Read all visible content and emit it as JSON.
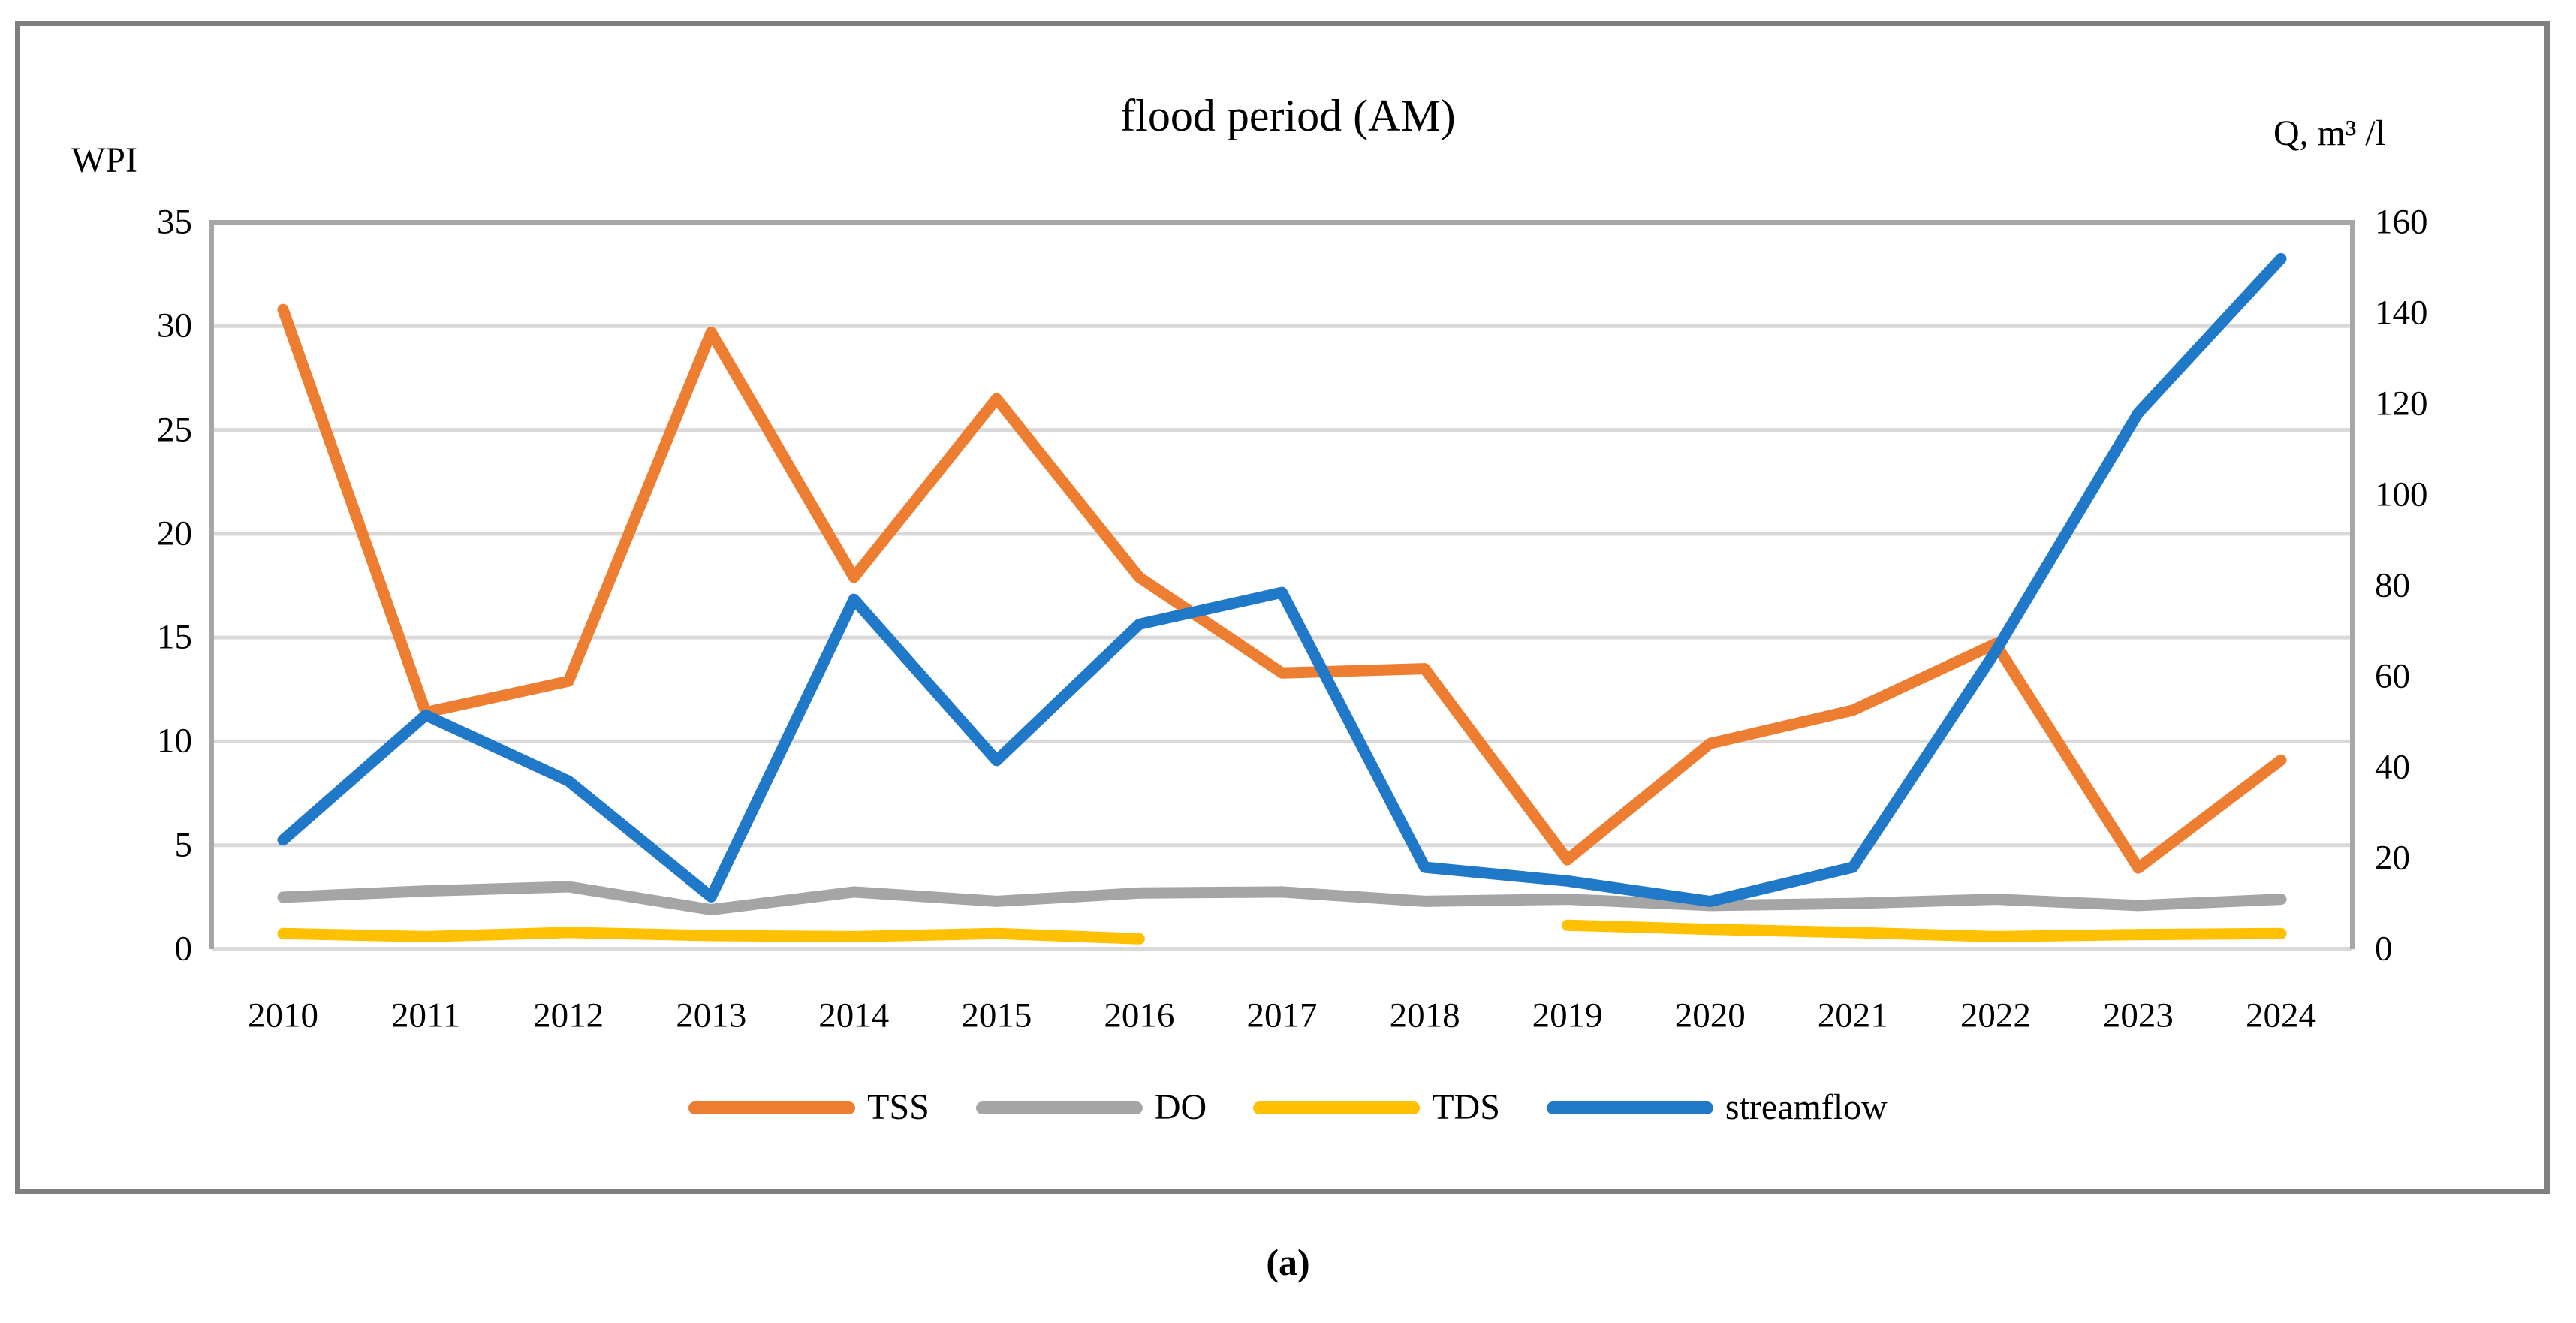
{
  "figure": {
    "title": "flood period (AM)",
    "caption": "(a)",
    "left_axis": {
      "label": "WPI",
      "ticks": [
        35,
        30,
        25,
        20,
        15,
        10,
        5,
        0
      ]
    },
    "right_axis": {
      "label": "Q, m³ /l",
      "ticks": [
        160,
        140,
        120,
        100,
        80,
        60,
        40,
        20,
        0
      ]
    }
  },
  "legend": {
    "items": [
      {
        "label": "TSS",
        "color": "#ED7D31"
      },
      {
        "label": "DO",
        "color": "#A5A5A5"
      },
      {
        "label": "TDS",
        "color": "#FFC000"
      },
      {
        "label": "streamflow",
        "color": "#1F78C8"
      }
    ]
  },
  "chart_data": {
    "type": "line",
    "title": "flood period (AM)",
    "categories": [
      2010,
      2011,
      2012,
      2013,
      2014,
      2015,
      2016,
      2017,
      2018,
      2019,
      2020,
      2021,
      2022,
      2023,
      2024
    ],
    "series": [
      {
        "name": "TSS",
        "axis": "left",
        "color": "#ED7D31",
        "values": [
          30.8,
          11.4,
          12.9,
          29.7,
          17.9,
          26.5,
          17.9,
          13.3,
          13.5,
          4.3,
          9.9,
          11.5,
          14.7,
          3.9,
          9.1
        ]
      },
      {
        "name": "DO",
        "axis": "left",
        "color": "#A5A5A5",
        "values": [
          2.5,
          2.8,
          3.0,
          1.9,
          2.75,
          2.3,
          2.7,
          2.75,
          2.3,
          2.4,
          2.1,
          2.2,
          2.4,
          2.1,
          2.4
        ]
      },
      {
        "name": "TDS",
        "axis": "left",
        "color": "#FFC000",
        "values": [
          0.75,
          0.6,
          0.8,
          0.65,
          0.6,
          0.75,
          0.5,
          null,
          null,
          1.15,
          0.95,
          0.8,
          0.6,
          0.7,
          0.75
        ]
      },
      {
        "name": "streamflow",
        "axis": "right",
        "color": "#1F78C8",
        "values": [
          24,
          51.5,
          37,
          11.5,
          77,
          41.5,
          71.5,
          78.5,
          18,
          15,
          10.5,
          18,
          65.5,
          118,
          152
        ]
      }
    ],
    "ylim_left": [
      0,
      35
    ],
    "ylim_right": [
      0,
      160
    ],
    "xlabel": "",
    "ylabel_left": "WPI",
    "ylabel_right": "Q, m³ /l",
    "grid": "horizontal",
    "legend_position": "bottom"
  }
}
